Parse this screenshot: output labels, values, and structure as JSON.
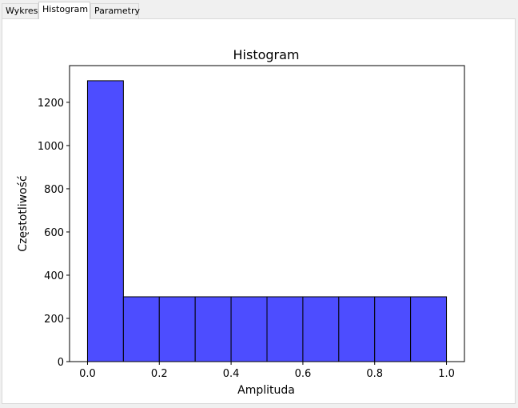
{
  "tabs": [
    {
      "label": "Wykres",
      "active": false
    },
    {
      "label": "Histogram",
      "active": true
    },
    {
      "label": "Parametry",
      "active": false
    }
  ],
  "colors": {
    "bar_fill": "#4d4dff",
    "bar_edge": "#000000"
  },
  "chart_data": {
    "type": "bar",
    "title": "Histogram",
    "xlabel": "Amplituda",
    "ylabel": "Częstotliwość",
    "bin_edges": [
      0.0,
      0.1,
      0.2,
      0.3,
      0.4,
      0.5,
      0.6,
      0.7,
      0.8,
      0.9,
      1.0
    ],
    "values": [
      1300,
      300,
      300,
      300,
      300,
      300,
      300,
      300,
      300,
      300
    ],
    "xlim": [
      -0.05,
      1.05
    ],
    "ylim": [
      0,
      1370
    ],
    "xticks": [
      0.0,
      0.2,
      0.4,
      0.6,
      0.8,
      1.0
    ],
    "xtick_labels": [
      "0.0",
      "0.2",
      "0.4",
      "0.6",
      "0.8",
      "1.0"
    ],
    "yticks": [
      0,
      200,
      400,
      600,
      800,
      1000,
      1200
    ],
    "ytick_labels": [
      "0",
      "200",
      "400",
      "600",
      "800",
      "1000",
      "1200"
    ],
    "grid": false,
    "legend": "none"
  }
}
